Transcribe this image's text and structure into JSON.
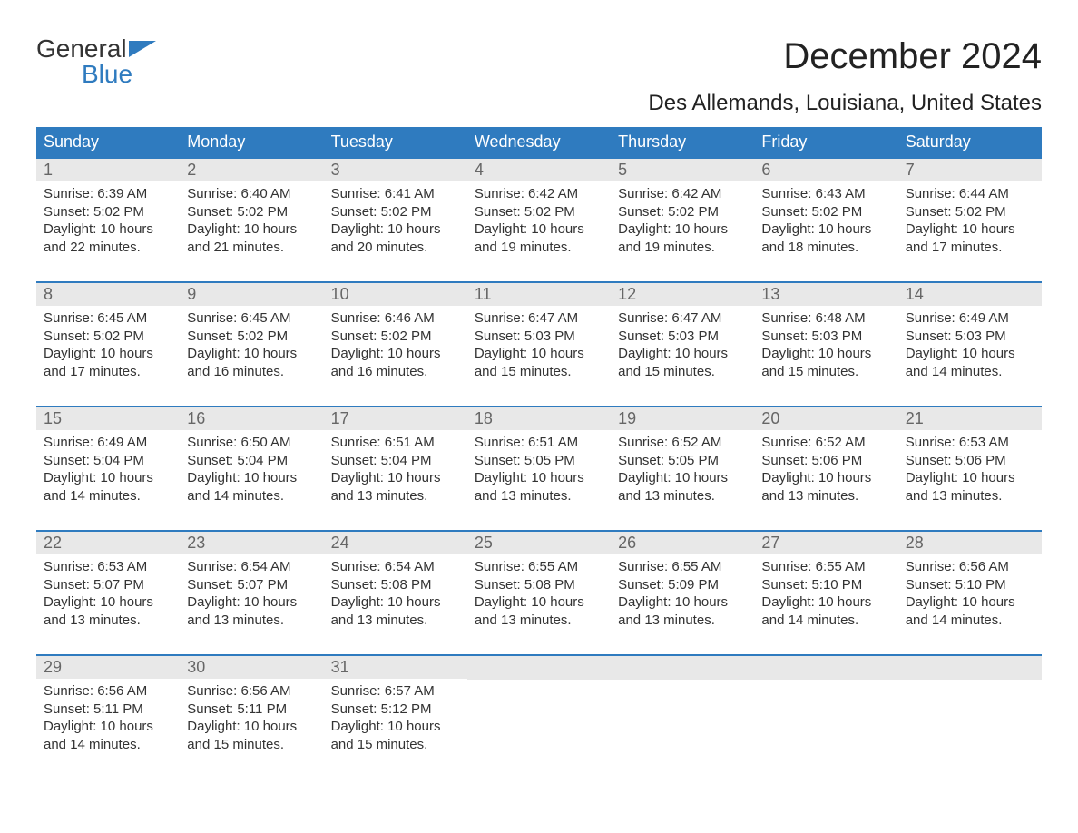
{
  "logo": {
    "word1": "General",
    "word2": "Blue"
  },
  "title": "December 2024",
  "subtitle": "Des Allemands, Louisiana, United States",
  "colors": {
    "header_bg": "#2f7bbf",
    "header_fg": "#ffffff",
    "daynum_bg": "#e8e8e8",
    "daynum_fg": "#666666",
    "rule": "#2f7bbf",
    "logo_blue": "#2f7bbf"
  },
  "day_headers": [
    "Sunday",
    "Monday",
    "Tuesday",
    "Wednesday",
    "Thursday",
    "Friday",
    "Saturday"
  ],
  "weeks": [
    [
      {
        "n": "1",
        "sunrise": "Sunrise: 6:39 AM",
        "sunset": "Sunset: 5:02 PM",
        "d1": "Daylight: 10 hours",
        "d2": "and 22 minutes."
      },
      {
        "n": "2",
        "sunrise": "Sunrise: 6:40 AM",
        "sunset": "Sunset: 5:02 PM",
        "d1": "Daylight: 10 hours",
        "d2": "and 21 minutes."
      },
      {
        "n": "3",
        "sunrise": "Sunrise: 6:41 AM",
        "sunset": "Sunset: 5:02 PM",
        "d1": "Daylight: 10 hours",
        "d2": "and 20 minutes."
      },
      {
        "n": "4",
        "sunrise": "Sunrise: 6:42 AM",
        "sunset": "Sunset: 5:02 PM",
        "d1": "Daylight: 10 hours",
        "d2": "and 19 minutes."
      },
      {
        "n": "5",
        "sunrise": "Sunrise: 6:42 AM",
        "sunset": "Sunset: 5:02 PM",
        "d1": "Daylight: 10 hours",
        "d2": "and 19 minutes."
      },
      {
        "n": "6",
        "sunrise": "Sunrise: 6:43 AM",
        "sunset": "Sunset: 5:02 PM",
        "d1": "Daylight: 10 hours",
        "d2": "and 18 minutes."
      },
      {
        "n": "7",
        "sunrise": "Sunrise: 6:44 AM",
        "sunset": "Sunset: 5:02 PM",
        "d1": "Daylight: 10 hours",
        "d2": "and 17 minutes."
      }
    ],
    [
      {
        "n": "8",
        "sunrise": "Sunrise: 6:45 AM",
        "sunset": "Sunset: 5:02 PM",
        "d1": "Daylight: 10 hours",
        "d2": "and 17 minutes."
      },
      {
        "n": "9",
        "sunrise": "Sunrise: 6:45 AM",
        "sunset": "Sunset: 5:02 PM",
        "d1": "Daylight: 10 hours",
        "d2": "and 16 minutes."
      },
      {
        "n": "10",
        "sunrise": "Sunrise: 6:46 AM",
        "sunset": "Sunset: 5:02 PM",
        "d1": "Daylight: 10 hours",
        "d2": "and 16 minutes."
      },
      {
        "n": "11",
        "sunrise": "Sunrise: 6:47 AM",
        "sunset": "Sunset: 5:03 PM",
        "d1": "Daylight: 10 hours",
        "d2": "and 15 minutes."
      },
      {
        "n": "12",
        "sunrise": "Sunrise: 6:47 AM",
        "sunset": "Sunset: 5:03 PM",
        "d1": "Daylight: 10 hours",
        "d2": "and 15 minutes."
      },
      {
        "n": "13",
        "sunrise": "Sunrise: 6:48 AM",
        "sunset": "Sunset: 5:03 PM",
        "d1": "Daylight: 10 hours",
        "d2": "and 15 minutes."
      },
      {
        "n": "14",
        "sunrise": "Sunrise: 6:49 AM",
        "sunset": "Sunset: 5:03 PM",
        "d1": "Daylight: 10 hours",
        "d2": "and 14 minutes."
      }
    ],
    [
      {
        "n": "15",
        "sunrise": "Sunrise: 6:49 AM",
        "sunset": "Sunset: 5:04 PM",
        "d1": "Daylight: 10 hours",
        "d2": "and 14 minutes."
      },
      {
        "n": "16",
        "sunrise": "Sunrise: 6:50 AM",
        "sunset": "Sunset: 5:04 PM",
        "d1": "Daylight: 10 hours",
        "d2": "and 14 minutes."
      },
      {
        "n": "17",
        "sunrise": "Sunrise: 6:51 AM",
        "sunset": "Sunset: 5:04 PM",
        "d1": "Daylight: 10 hours",
        "d2": "and 13 minutes."
      },
      {
        "n": "18",
        "sunrise": "Sunrise: 6:51 AM",
        "sunset": "Sunset: 5:05 PM",
        "d1": "Daylight: 10 hours",
        "d2": "and 13 minutes."
      },
      {
        "n": "19",
        "sunrise": "Sunrise: 6:52 AM",
        "sunset": "Sunset: 5:05 PM",
        "d1": "Daylight: 10 hours",
        "d2": "and 13 minutes."
      },
      {
        "n": "20",
        "sunrise": "Sunrise: 6:52 AM",
        "sunset": "Sunset: 5:06 PM",
        "d1": "Daylight: 10 hours",
        "d2": "and 13 minutes."
      },
      {
        "n": "21",
        "sunrise": "Sunrise: 6:53 AM",
        "sunset": "Sunset: 5:06 PM",
        "d1": "Daylight: 10 hours",
        "d2": "and 13 minutes."
      }
    ],
    [
      {
        "n": "22",
        "sunrise": "Sunrise: 6:53 AM",
        "sunset": "Sunset: 5:07 PM",
        "d1": "Daylight: 10 hours",
        "d2": "and 13 minutes."
      },
      {
        "n": "23",
        "sunrise": "Sunrise: 6:54 AM",
        "sunset": "Sunset: 5:07 PM",
        "d1": "Daylight: 10 hours",
        "d2": "and 13 minutes."
      },
      {
        "n": "24",
        "sunrise": "Sunrise: 6:54 AM",
        "sunset": "Sunset: 5:08 PM",
        "d1": "Daylight: 10 hours",
        "d2": "and 13 minutes."
      },
      {
        "n": "25",
        "sunrise": "Sunrise: 6:55 AM",
        "sunset": "Sunset: 5:08 PM",
        "d1": "Daylight: 10 hours",
        "d2": "and 13 minutes."
      },
      {
        "n": "26",
        "sunrise": "Sunrise: 6:55 AM",
        "sunset": "Sunset: 5:09 PM",
        "d1": "Daylight: 10 hours",
        "d2": "and 13 minutes."
      },
      {
        "n": "27",
        "sunrise": "Sunrise: 6:55 AM",
        "sunset": "Sunset: 5:10 PM",
        "d1": "Daylight: 10 hours",
        "d2": "and 14 minutes."
      },
      {
        "n": "28",
        "sunrise": "Sunrise: 6:56 AM",
        "sunset": "Sunset: 5:10 PM",
        "d1": "Daylight: 10 hours",
        "d2": "and 14 minutes."
      }
    ],
    [
      {
        "n": "29",
        "sunrise": "Sunrise: 6:56 AM",
        "sunset": "Sunset: 5:11 PM",
        "d1": "Daylight: 10 hours",
        "d2": "and 14 minutes."
      },
      {
        "n": "30",
        "sunrise": "Sunrise: 6:56 AM",
        "sunset": "Sunset: 5:11 PM",
        "d1": "Daylight: 10 hours",
        "d2": "and 15 minutes."
      },
      {
        "n": "31",
        "sunrise": "Sunrise: 6:57 AM",
        "sunset": "Sunset: 5:12 PM",
        "d1": "Daylight: 10 hours",
        "d2": "and 15 minutes."
      },
      null,
      null,
      null,
      null
    ]
  ]
}
